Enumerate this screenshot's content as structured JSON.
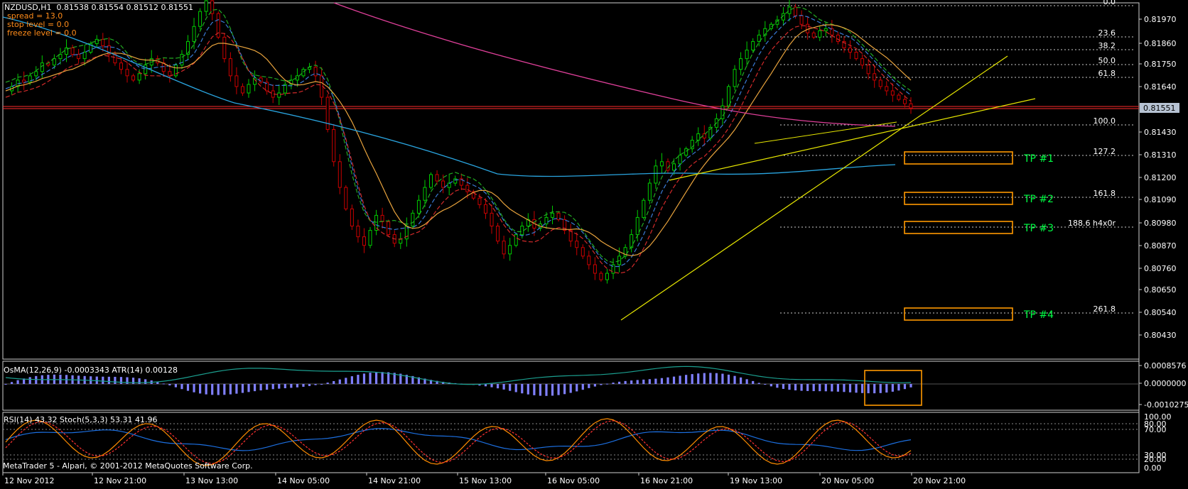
{
  "window": {
    "symbol_line": "NZDUSD,H1  0.81538 0.81554 0.81512 0.81551",
    "spread": "spread = 13.0",
    "stop_level": "stop level = 0.0",
    "freeze_level": "freeze level = 0.0",
    "copyright": "MetaTrader 5 - Alpari, © 2001-2012 MetaQuotes Software Corp."
  },
  "colors": {
    "background": "#000000",
    "frame": "#cfcfcf",
    "bull": "#00cc00",
    "bear": "#cc0000",
    "ma_green": "#22aa22",
    "ma_blue": "#3a7bd5",
    "ma_red": "#d12a2a",
    "ma_orange": "#e8a33d",
    "ma_cyan": "#2aa5e0",
    "ma_magenta": "#e0409a",
    "trendline": "#e6e600",
    "tp_box": "#ff9900",
    "tp_text": "#00ff44",
    "fib": "#cccccc",
    "price_line": "#ff2a2a",
    "osma_hist": "#8080ff",
    "atr": "#1b9f8f",
    "rsi": "#1c6fe0",
    "stoch_main": "#ff8c00",
    "stoch_signal": "#ff3030",
    "current_price_bg": "#b7c3d3"
  },
  "main_chart": {
    "price_labels": [
      "0.81970",
      "0.81860",
      "0.81750",
      "0.81640",
      "0.81430",
      "0.81310",
      "0.81200",
      "0.81090",
      "0.80980",
      "0.80870",
      "0.80760",
      "0.80650",
      "0.80540",
      "0.80430"
    ],
    "current_price": "0.81551",
    "fib_levels": [
      "0.0",
      "23.6",
      "38.2",
      "50.0",
      "61.8",
      "100.0",
      "127.2",
      "161.8",
      "188.6 h4x0r",
      "261.8"
    ],
    "tp_labels": [
      "TP #1",
      "TP #2",
      "TP #3",
      "TP #4"
    ]
  },
  "osma_panel": {
    "title": "OsMA(12,26,9) -0.0003343 ATR(14) 0.00128",
    "labels": [
      "0.0008576",
      "0.0000000",
      "-0.0010275"
    ]
  },
  "rsi_panel": {
    "title": "RSI(14) 43.32 Stoch(5,3,3) 53.31 41.96",
    "labels": [
      "100.00",
      "80.00",
      "70.00",
      "30.00",
      "20.00",
      "0.00"
    ]
  },
  "time_axis": [
    "12 Nov 2012",
    "12 Nov 21:00",
    "13 Nov 13:00",
    "14 Nov 05:00",
    "14 Nov 21:00",
    "15 Nov 13:00",
    "16 Nov 05:00",
    "16 Nov 21:00",
    "19 Nov 13:00",
    "20 Nov 05:00",
    "20 Nov 21:00"
  ],
  "chart_data": {
    "type": "candlestick",
    "symbol": "NZDUSD",
    "timeframe": "H1",
    "last_bar": {
      "open": 0.81538,
      "high": 0.81554,
      "low": 0.81512,
      "close": 0.81551
    },
    "price_path": [
      0.8163,
      0.8165,
      0.8168,
      0.8167,
      0.817,
      0.8172,
      0.8176,
      0.8175,
      0.8178,
      0.818,
      0.8183,
      0.818,
      0.8178,
      0.8181,
      0.8185,
      0.8187,
      0.8184,
      0.818,
      0.8176,
      0.8173,
      0.817,
      0.8168,
      0.8171,
      0.8175,
      0.8178,
      0.8176,
      0.8172,
      0.817,
      0.8175,
      0.818,
      0.8186,
      0.8193,
      0.82,
      0.8205,
      0.8199,
      0.8188,
      0.8178,
      0.817,
      0.8165,
      0.8162,
      0.8166,
      0.8169,
      0.8167,
      0.8163,
      0.816,
      0.8162,
      0.8166,
      0.8168,
      0.817,
      0.8173,
      0.8174,
      0.817,
      0.816,
      0.8145,
      0.813,
      0.8118,
      0.8108,
      0.81,
      0.8095,
      0.8091,
      0.8098,
      0.8105,
      0.8102,
      0.8096,
      0.8092,
      0.8094,
      0.81,
      0.8106,
      0.8112,
      0.8118,
      0.8124,
      0.8121,
      0.8118,
      0.812,
      0.8122,
      0.8119,
      0.8116,
      0.8113,
      0.811,
      0.8106,
      0.81,
      0.8093,
      0.8087,
      0.8091,
      0.8096,
      0.81,
      0.8103,
      0.8099,
      0.8101,
      0.8104,
      0.8106,
      0.8103,
      0.8098,
      0.8093,
      0.809,
      0.8086,
      0.8082,
      0.8078,
      0.8075,
      0.8078,
      0.8082,
      0.8086,
      0.809,
      0.8096,
      0.8104,
      0.8112,
      0.812,
      0.8128,
      0.813,
      0.8126,
      0.8129,
      0.8133,
      0.8136,
      0.814,
      0.8143,
      0.8141,
      0.8146,
      0.815,
      0.8156,
      0.8165,
      0.8173,
      0.8178,
      0.8182,
      0.8186,
      0.8189,
      0.8192,
      0.8194,
      0.8196,
      0.8199,
      0.8202,
      0.8198,
      0.8194,
      0.819,
      0.8188,
      0.8191,
      0.8192,
      0.8189,
      0.8186,
      0.8183,
      0.8181,
      0.8178,
      0.8175,
      0.8171,
      0.8168,
      0.8165,
      0.8163,
      0.8161,
      0.8159,
      0.8157,
      0.8155
    ],
    "moving_averages": [
      "green",
      "blue",
      "red",
      "orange",
      "cyan",
      "magenta"
    ],
    "fibonacci": {
      "0.0": 0.8202,
      "100.0": 0.8148,
      "127.2": 0.8131,
      "161.8": 0.8109,
      "188.6": 0.8095,
      "261.8": 0.8054
    },
    "osma_last": -0.0003343,
    "atr_last": 0.00128,
    "rsi_last": 43.32,
    "stoch_main_last": 53.31,
    "stoch_signal_last": 41.96
  }
}
